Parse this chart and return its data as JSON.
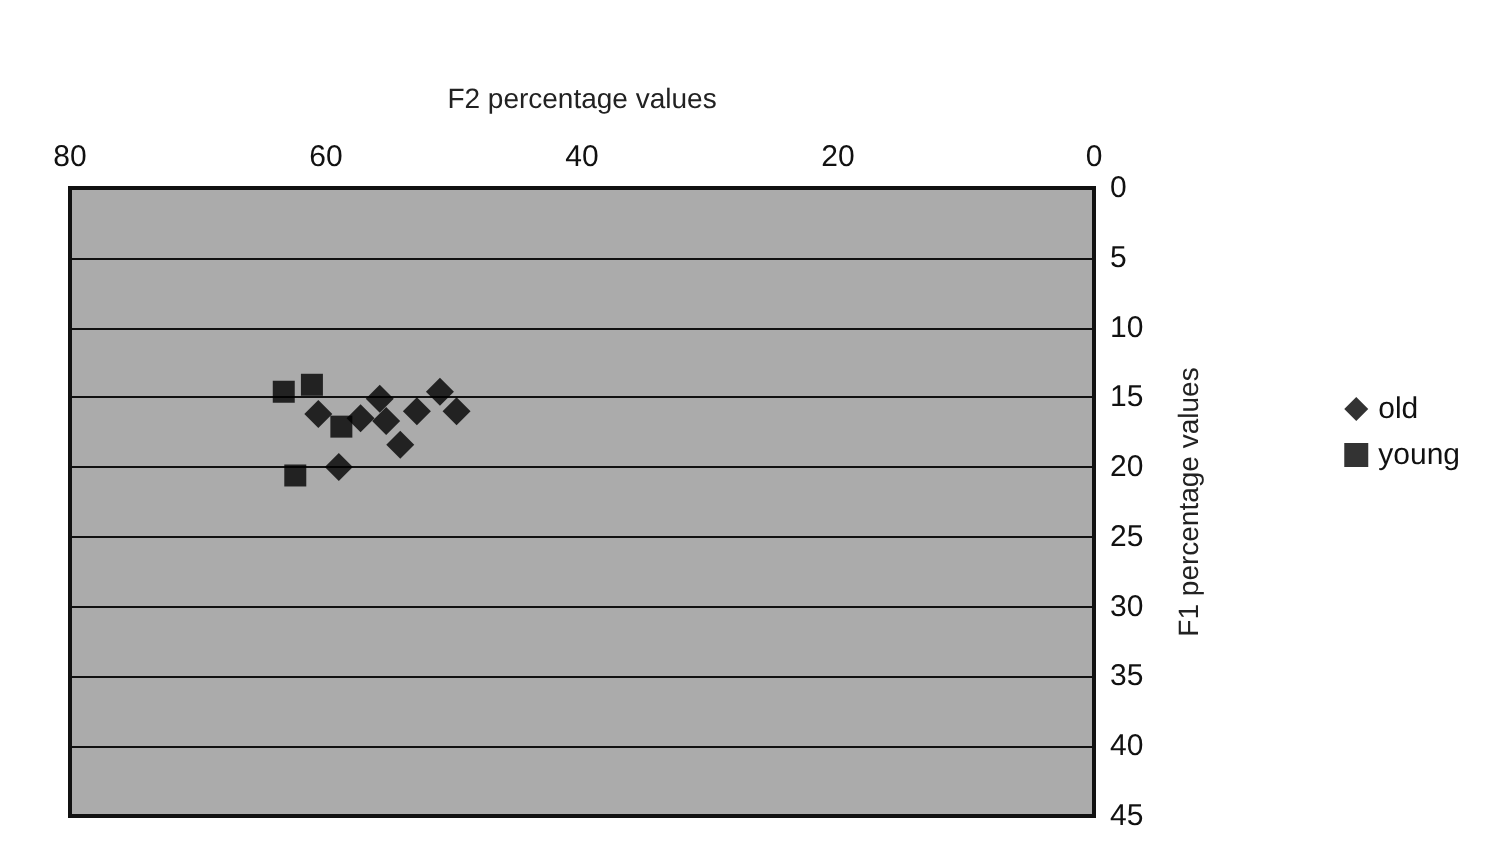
{
  "chart_data": {
    "type": "scatter",
    "xlabel": "F2 percentage values",
    "ylabel": "F1 percentage values",
    "xlim": [
      80,
      0
    ],
    "xticks": [
      80,
      60,
      40,
      20,
      0
    ],
    "ylim": [
      45,
      0
    ],
    "yticks": [
      0,
      5,
      10,
      15,
      20,
      25,
      30,
      35,
      40,
      45
    ],
    "grid": "y",
    "legend": "right",
    "series": [
      {
        "name": "old",
        "color": "#000000",
        "marker": "diamond",
        "x": [
          60.6,
          59.0,
          57.3,
          55.8,
          55.3,
          54.2,
          52.9,
          51.1,
          49.8
        ],
        "values": [
          16.2,
          20.0,
          16.5,
          15.1,
          16.7,
          18.4,
          16.0,
          14.6,
          16.0
        ]
      },
      {
        "name": "young",
        "color": "#000000",
        "marker": "square",
        "x": [
          63.3,
          61.1,
          62.4,
          58.8
        ],
        "values": [
          14.6,
          14.1,
          20.6,
          17.1
        ]
      }
    ]
  }
}
